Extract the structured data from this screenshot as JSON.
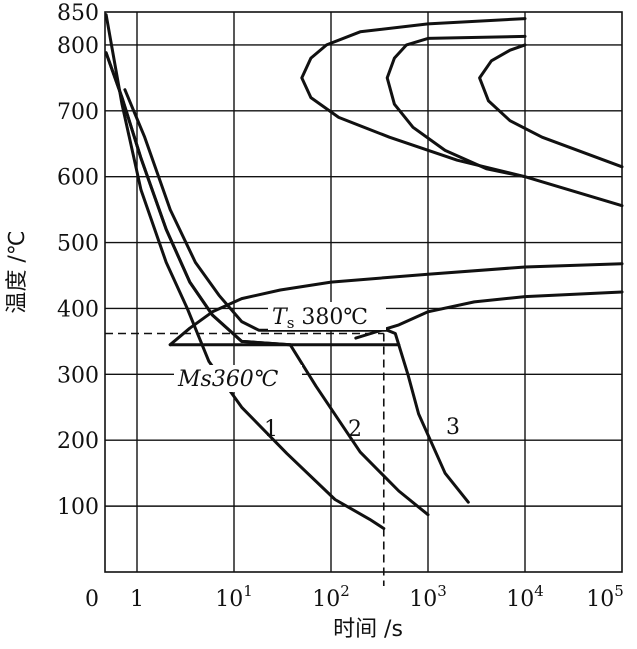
{
  "chart_data": {
    "type": "line",
    "title": "",
    "xlabel": "时间 /s",
    "ylabel": "温度 /℃",
    "xscale": "log",
    "grid": true,
    "ylim": [
      0,
      850
    ],
    "x_ticks": [
      {
        "value": 0,
        "label": "0"
      },
      {
        "value": 1,
        "label": "1"
      },
      {
        "value": 10,
        "base": "10",
        "exp": "1"
      },
      {
        "value": 100,
        "base": "10",
        "exp": "2"
      },
      {
        "value": 1000,
        "base": "10",
        "exp": "3"
      },
      {
        "value": 10000,
        "base": "10",
        "exp": "4"
      },
      {
        "value": 100000,
        "base": "10",
        "exp": "5"
      }
    ],
    "y_ticks": [
      100,
      200,
      300,
      400,
      500,
      600,
      700,
      800,
      850
    ],
    "series": [
      {
        "points": [
          [
            0.48,
            846
          ],
          [
            0.7,
            710
          ],
          [
            1.1,
            580
          ],
          [
            2,
            470
          ],
          [
            3.3,
            400
          ],
          [
            5.5,
            320
          ],
          [
            12,
            250
          ],
          [
            35,
            180
          ],
          [
            110,
            110
          ],
          [
            250,
            80
          ],
          [
            350,
            66
          ]
        ]
      },
      {
        "points": [
          [
            0.48,
            788
          ],
          [
            0.7,
            720
          ],
          [
            1.1,
            628
          ],
          [
            2,
            520
          ],
          [
            3.5,
            440
          ],
          [
            6,
            390
          ],
          [
            12,
            350
          ],
          [
            38,
            345
          ]
        ]
      },
      {
        "points": [
          [
            0.48,
            788
          ],
          [
            0.7,
            720
          ],
          [
            1.1,
            628
          ],
          [
            2,
            520
          ],
          [
            3.5,
            440
          ],
          [
            6,
            390
          ],
          [
            12,
            350
          ],
          [
            38,
            345
          ],
          [
            70,
            282
          ],
          [
            200,
            182
          ],
          [
            500,
            123
          ],
          [
            1000,
            87
          ]
        ]
      },
      {
        "points": [
          [
            0.75,
            732
          ],
          [
            1.2,
            660
          ],
          [
            2.2,
            550
          ],
          [
            4,
            470
          ],
          [
            7,
            420
          ],
          [
            12,
            380
          ],
          [
            18,
            367
          ],
          [
            40,
            367
          ],
          [
            200,
            367
          ],
          [
            380,
            367
          ],
          [
            460,
            362
          ],
          [
            620,
            300
          ],
          [
            800,
            240
          ],
          [
            1500,
            150
          ],
          [
            2600,
            106
          ]
        ]
      },
      {
        "points": [
          [
            2.2,
            345
          ],
          [
            500,
            345
          ]
        ]
      },
      {
        "points": [
          [
            2.2,
            345
          ],
          [
            3.5,
            370
          ],
          [
            6,
            395
          ],
          [
            12,
            415
          ],
          [
            30,
            428
          ],
          [
            100,
            440
          ],
          [
            1000,
            452
          ],
          [
            10000,
            463
          ],
          [
            100000,
            468
          ]
        ]
      },
      {
        "points": [
          [
            180,
            355
          ],
          [
            300,
            365
          ],
          [
            500,
            375
          ],
          [
            1000,
            395
          ],
          [
            3000,
            410
          ],
          [
            10000,
            418
          ],
          [
            100000,
            425
          ]
        ]
      },
      {
        "points": [
          [
            10000,
            840
          ],
          [
            1000,
            832
          ],
          [
            200,
            820
          ],
          [
            90,
            800
          ],
          [
            62,
            780
          ],
          [
            50,
            750
          ],
          [
            62,
            720
          ],
          [
            120,
            690
          ],
          [
            400,
            660
          ],
          [
            2000,
            625
          ],
          [
            10000,
            600
          ],
          [
            100000,
            556
          ]
        ]
      },
      {
        "points": [
          [
            10000,
            813
          ],
          [
            1000,
            810
          ],
          [
            600,
            800
          ],
          [
            450,
            780
          ],
          [
            380,
            750
          ],
          [
            450,
            710
          ],
          [
            700,
            675
          ],
          [
            1500,
            640
          ],
          [
            4000,
            612
          ],
          [
            10000,
            600
          ]
        ]
      },
      {
        "points": [
          [
            10000,
            800
          ],
          [
            7000,
            792
          ],
          [
            4500,
            776
          ],
          [
            3400,
            750
          ],
          [
            4200,
            715
          ],
          [
            7000,
            685
          ],
          [
            15000,
            660
          ],
          [
            100000,
            615
          ]
        ]
      }
    ],
    "reference_line": {
      "y": 362,
      "x_end": 350,
      "style": "dashed"
    },
    "annotations": {
      "ts_prefix": "T",
      "ts_sub": "s",
      "ts_value": " 380℃",
      "ms_text": "Ms360℃",
      "curve_labels": [
        "1",
        "2",
        "3"
      ]
    }
  }
}
